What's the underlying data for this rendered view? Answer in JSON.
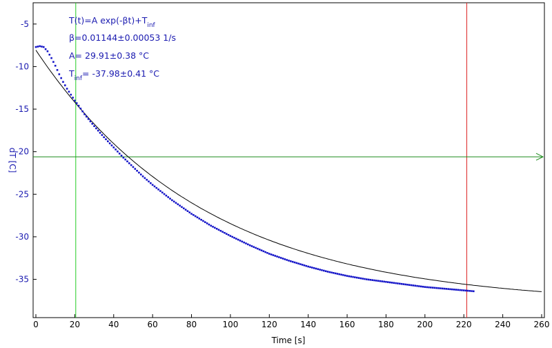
{
  "chart_data": {
    "type": "scatter",
    "title": "",
    "xlabel": "Time [s]",
    "ylabel": "dT [C]",
    "xlim": [
      0,
      260
    ],
    "ylim": [
      -39.5,
      -2.5
    ],
    "xticks": [
      0,
      20,
      40,
      60,
      80,
      100,
      120,
      140,
      160,
      180,
      200,
      220,
      240,
      260
    ],
    "yticks": [
      -5,
      -10,
      -15,
      -20,
      -25,
      -30,
      -35
    ],
    "grid": false,
    "annotations": [
      {
        "lines": [
          "T(t)=A exp(-βt)+T",
          "inf"
        ]
      },
      {
        "lines": [
          "β=0.01144±0.00053 1/s"
        ]
      },
      {
        "lines": [
          "A= 29.91±0.38 °C"
        ]
      },
      {
        "lines": [
          "T",
          "inf",
          "= -37.98±0.41 °C"
        ]
      }
    ],
    "fit": {
      "function": "A*exp(-beta*t)+T_inf",
      "A": 29.91,
      "beta": 0.01144,
      "T_inf": -37.98,
      "x_range": [
        0,
        260
      ]
    },
    "markers": {
      "green_vertical_x": 20.5,
      "red_vertical_x": 221.5,
      "green_horizontal_y": -20.6
    },
    "series": [
      {
        "color": "#1515c8",
        "x": [
          0,
          2,
          4,
          6,
          8,
          10,
          12,
          14,
          16,
          18,
          20,
          22,
          25,
          30,
          35,
          40,
          45,
          50,
          55,
          60,
          65,
          70,
          75,
          80,
          90,
          100,
          110,
          120,
          130,
          140,
          150,
          160,
          170,
          180,
          190,
          200,
          210,
          220,
          225
        ],
        "y": [
          -7.7,
          -7.6,
          -7.7,
          -8.2,
          -9.0,
          -9.9,
          -10.9,
          -11.8,
          -12.6,
          -13.3,
          -14.0,
          -14.6,
          -15.6,
          -17.0,
          -18.3,
          -19.5,
          -20.7,
          -21.8,
          -22.9,
          -23.9,
          -24.8,
          -25.7,
          -26.5,
          -27.3,
          -28.7,
          -29.9,
          -31.0,
          -32.0,
          -32.8,
          -33.5,
          -34.1,
          -34.6,
          -35.0,
          -35.3,
          -35.6,
          -35.9,
          -36.1,
          -36.3,
          -36.4
        ]
      }
    ],
    "colors": {
      "data": "#1515c8",
      "fit": "#000000",
      "left_marker": "#22cc22",
      "right_marker": "#dd2222",
      "horizontal_marker": "#1a8a1a",
      "ytick_labels": "#1a1ab0",
      "ylabel": "#1a1ab0"
    }
  }
}
